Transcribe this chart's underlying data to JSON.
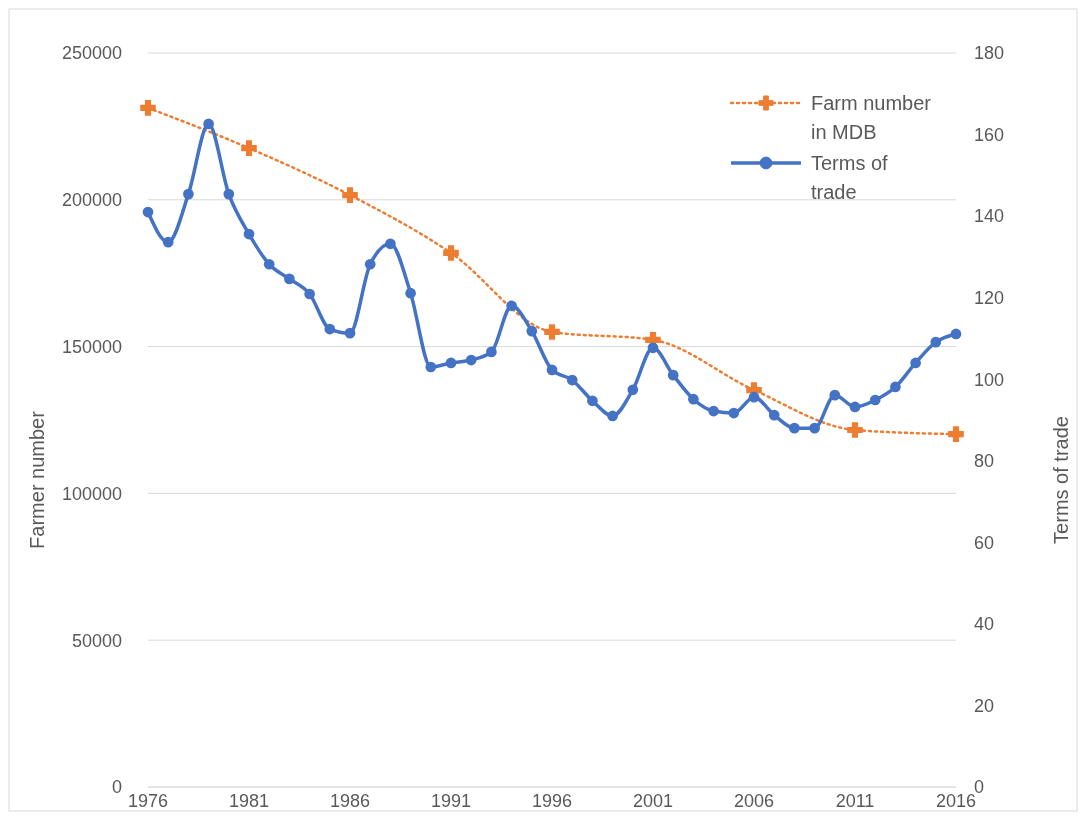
{
  "chart_data": {
    "type": "line",
    "ylabel": "Farmer number",
    "y2label": "Terms of trade",
    "xlim": [
      1976,
      2016
    ],
    "xticks": [
      1976,
      1981,
      1986,
      1991,
      1996,
      2001,
      2006,
      2011,
      2016
    ],
    "ylim": [
      0,
      250000
    ],
    "yticks": [
      0,
      50000,
      100000,
      150000,
      200000,
      250000
    ],
    "y2lim": [
      0,
      180
    ],
    "y2ticks": [
      0,
      20,
      40,
      60,
      80,
      100,
      120,
      140,
      160,
      180
    ],
    "grid": "y",
    "legend": "top right",
    "series": [
      {
        "name": "Farm number in MDB",
        "color": "#ed7d31",
        "line_style": "dotted",
        "marker": "cross",
        "x": [
          1976,
          1981,
          1986,
          1991,
          1996,
          2001,
          2006,
          2011,
          2016
        ],
        "values": [
          231300,
          217600,
          201600,
          181900,
          155000,
          152300,
          135200,
          121600,
          120200
        ]
      },
      {
        "name": "Terms of trade",
        "color": "#4472c4",
        "line_style": "solid",
        "marker": "circle",
        "axis": "y2",
        "x": [
          1976,
          1977,
          1978,
          1979,
          1980,
          1981,
          1982,
          1983,
          1984,
          1985,
          1986,
          1987,
          1988,
          1989,
          1990,
          1991,
          1992,
          1993,
          1994,
          1995,
          1996,
          1997,
          1998,
          1999,
          2000,
          2001,
          2002,
          2003,
          2004,
          2005,
          2006,
          2007,
          2008,
          2009,
          2010,
          2011,
          2012,
          2013,
          2014,
          2015,
          2016
        ],
        "values": [
          141,
          133.6,
          145.4,
          162.6,
          145.4,
          135.6,
          128.2,
          124.6,
          120.9,
          112.3,
          111.3,
          128.2,
          133.2,
          121.1,
          103,
          104,
          104.7,
          106.7,
          118,
          111.8,
          102.3,
          99.8,
          94.7,
          91,
          97.4,
          107.7,
          101,
          95.1,
          92.2,
          91.7,
          95.6,
          91.2,
          88,
          88,
          96.1,
          93.2,
          94.9,
          98.1,
          104,
          109.1,
          111.1
        ]
      }
    ]
  }
}
